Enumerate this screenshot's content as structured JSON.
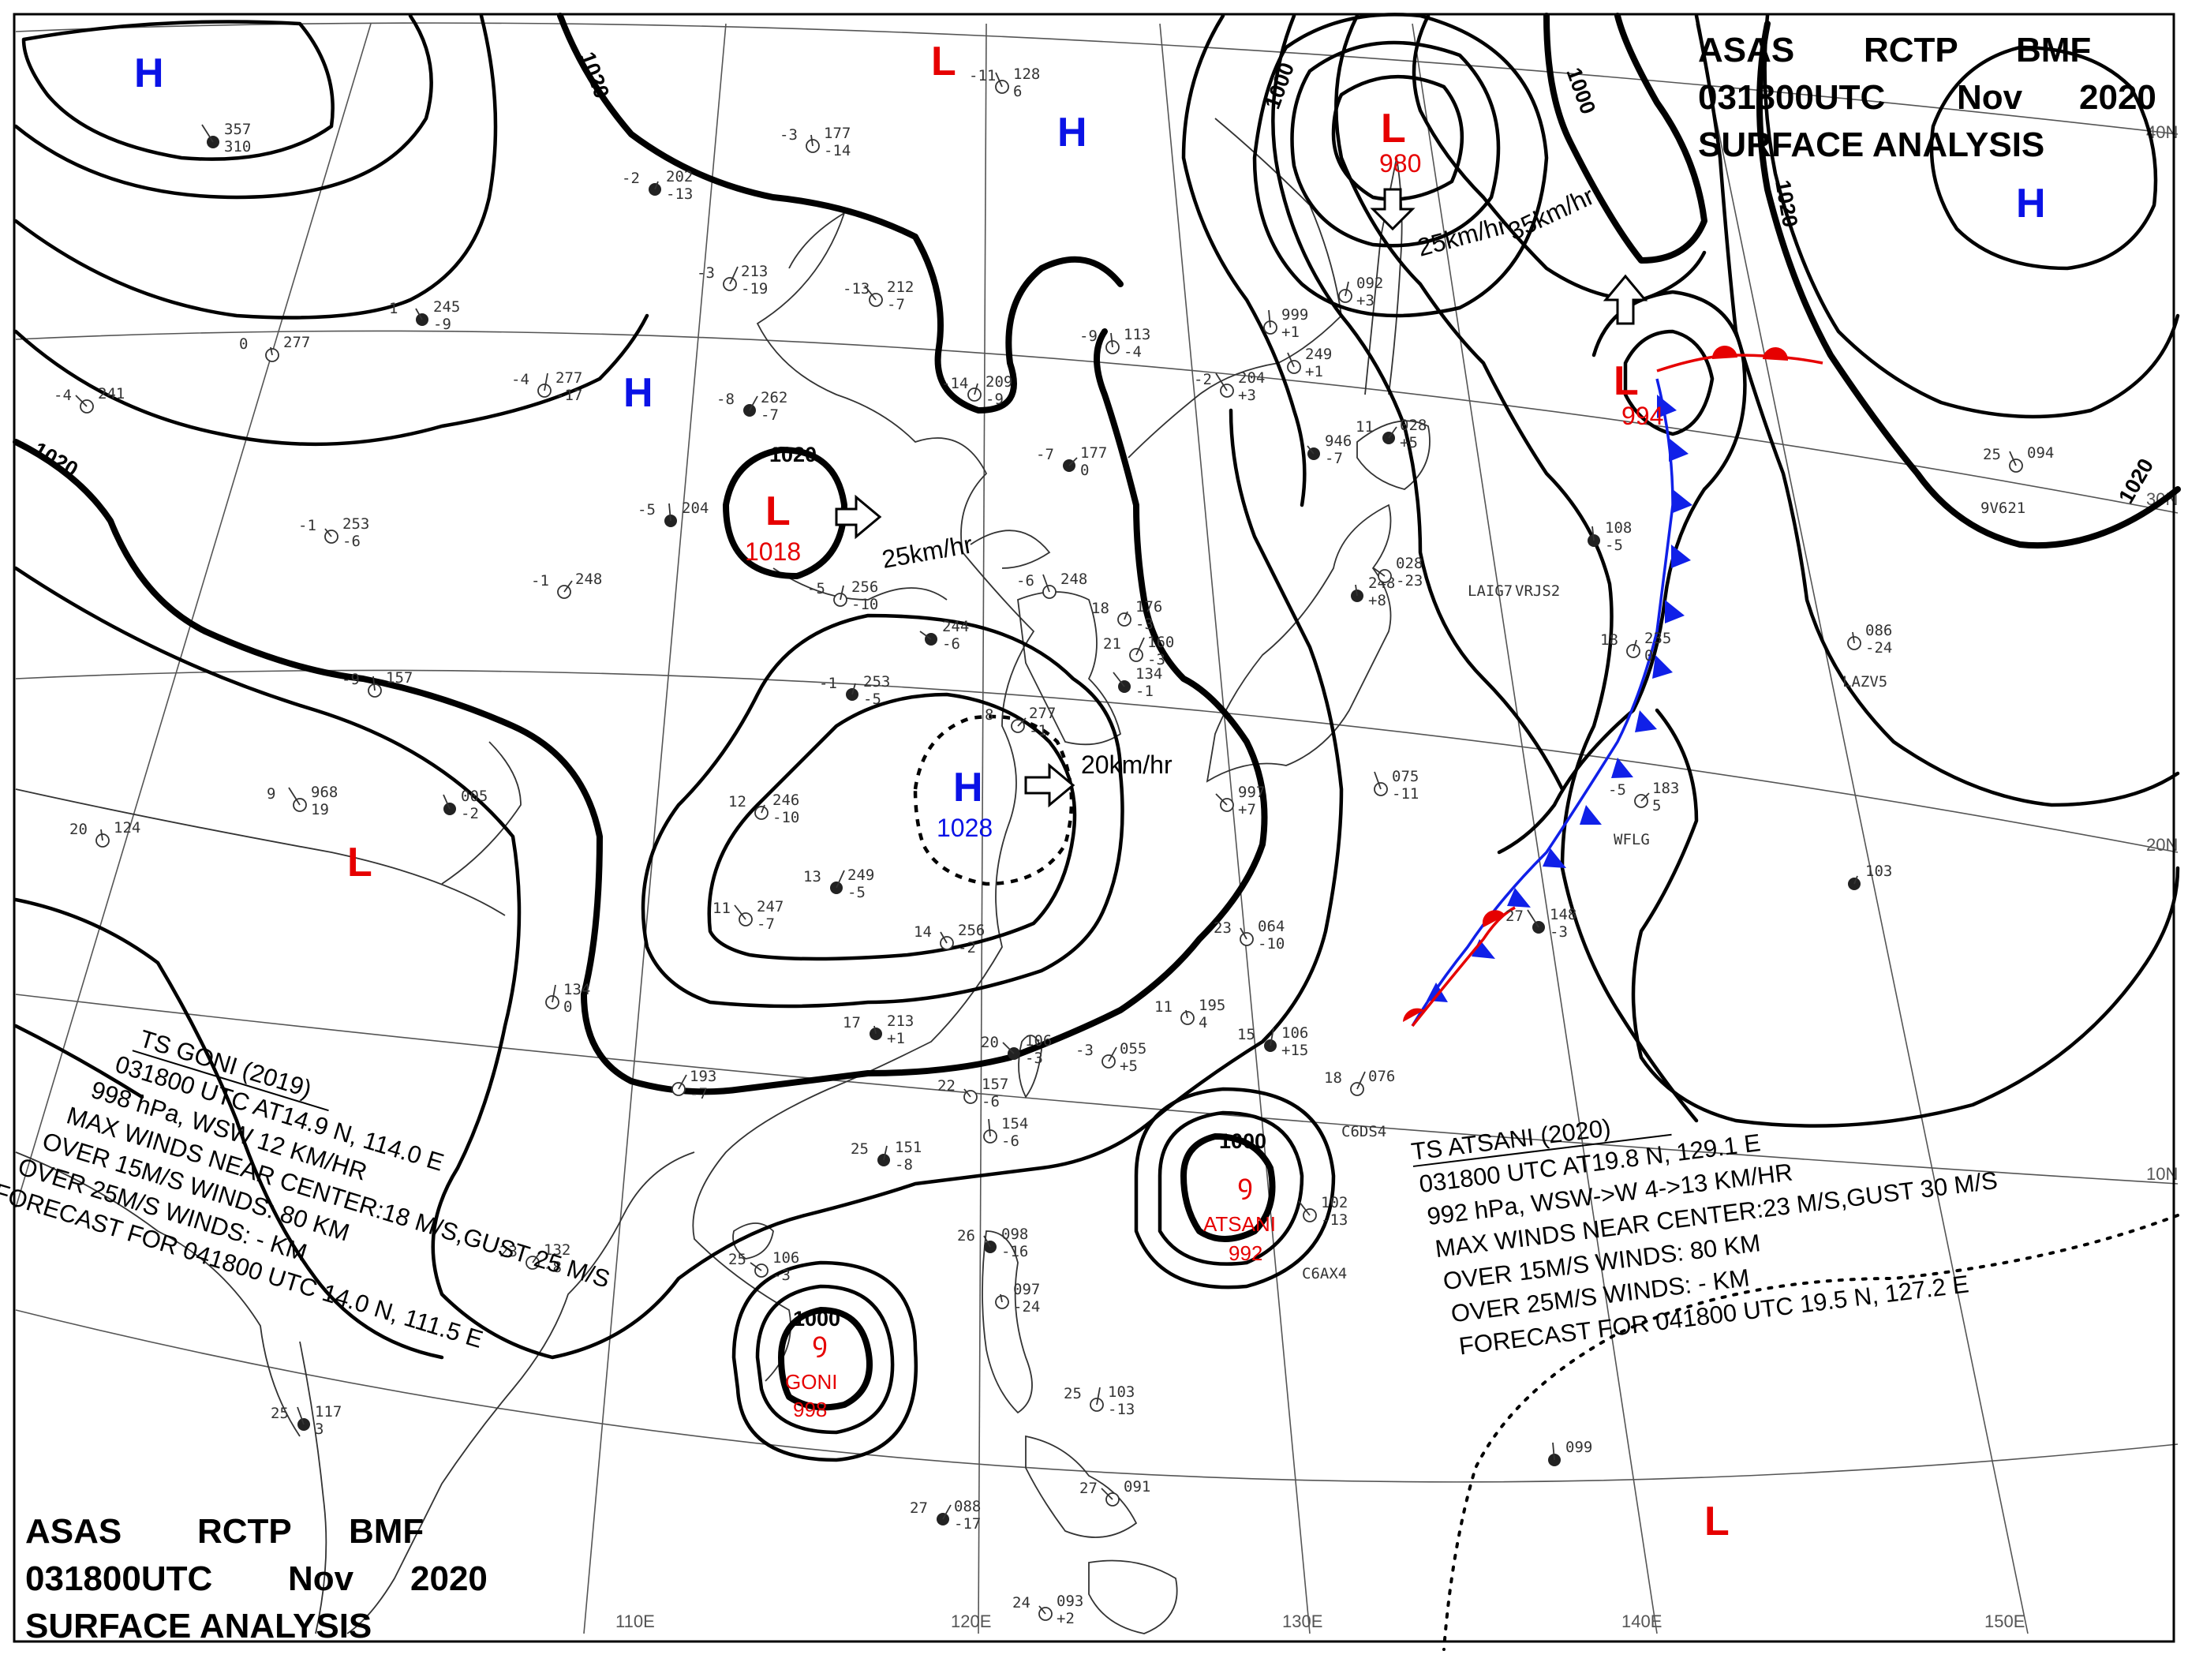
{
  "header_top": {
    "line1": [
      "ASAS",
      "RCTP",
      "BMF"
    ],
    "line2": [
      "031800UTC",
      "Nov",
      "2020"
    ],
    "line3": "SURFACE  ANALYSIS"
  },
  "header_bottom": {
    "line1": [
      "ASAS",
      "RCTP",
      "BMF"
    ],
    "line2": [
      "031800UTC",
      "Nov",
      "2020"
    ],
    "line3": "SURFACE  ANALYSIS"
  },
  "colors": {
    "high": "#0a12e6",
    "low": "#e60000",
    "storm": "#e60000",
    "cold_front": "#1020e8",
    "warm_front": "#e60000",
    "isobar": "#000000"
  },
  "grid_labels": {
    "lon": [
      "110E",
      "120E",
      "130E",
      "140E",
      "150E"
    ],
    "lat": [
      "40N",
      "30N",
      "20N",
      "10N"
    ]
  },
  "isobar_labels": [
    "1020",
    "1020",
    "1000",
    "1020",
    "1000",
    "1000",
    "1020",
    "1020",
    "1000",
    "1000"
  ],
  "pressure_systems": [
    {
      "type": "H",
      "name": "high-nw"
    },
    {
      "type": "H",
      "name": "high-north"
    },
    {
      "type": "H",
      "name": "high-mongolia"
    },
    {
      "type": "H",
      "name": "high-east",
      "icon": "high"
    },
    {
      "type": "H",
      "name": "high-china",
      "value": "1028"
    },
    {
      "type": "L",
      "name": "low-north"
    },
    {
      "type": "L",
      "name": "low-sakhalin",
      "value": "980"
    },
    {
      "type": "L",
      "name": "low-china",
      "value": "1018"
    },
    {
      "type": "L",
      "name": "low-japan-sea",
      "value": "994"
    },
    {
      "type": "L",
      "name": "low-india"
    },
    {
      "type": "L",
      "name": "low-pacific"
    }
  ],
  "motions": [
    "25km/hr",
    "35km/hr",
    "25km/hr",
    "20km/hr"
  ],
  "storms": [
    {
      "name": "GONI",
      "pressure": "998",
      "isobar": "1000"
    },
    {
      "name": "ATSANI",
      "pressure": "992",
      "isobar": "1000"
    }
  ],
  "ts_goni": {
    "lines": [
      "TS  GONI  (2019)",
      "031800 UTC  AT14.9 N, 114.0 E",
      "998 hPa, WSW  12 KM/HR",
      "MAX WINDS NEAR CENTER:18 M/S,GUST 25 M/S",
      "OVER 15M/S WINDS: 80 KM",
      "OVER 25M/S WINDS: - KM",
      "FORECAST FOR 041800 UTC 14.0 N, 111.5 E"
    ]
  },
  "ts_atsani": {
    "lines": [
      "TS  ATSANI  (2020)",
      "031800 UTC  AT19.8 N, 129.1 E",
      "992 hPa, WSW->W  4->13 KM/HR",
      "MAX WINDS NEAR CENTER:23 M/S,GUST 30 M/S",
      "OVER 15M/S WINDS: 80 KM",
      "OVER 25M/S WINDS: - KM",
      "FORECAST FOR 041800 UTC 19.5 N, 127.2 E"
    ]
  },
  "stations": [
    {
      "name": "stn-01",
      "p": "357",
      "t": "",
      "d": "310"
    },
    {
      "name": "stn-02",
      "p": "128",
      "t": "-11",
      "d": "6"
    },
    {
      "name": "stn-03",
      "p": "177",
      "t": "-3",
      "d": "-14"
    },
    {
      "name": "stn-04",
      "p": "202",
      "t": "-2",
      "d": "-13"
    },
    {
      "name": "stn-05",
      "p": "213",
      "t": "-3",
      "d": "-19"
    },
    {
      "name": "stn-06",
      "p": "212",
      "t": "-13",
      "d": "-7"
    },
    {
      "name": "stn-07",
      "p": "245",
      "t": "1",
      "d": "-9"
    },
    {
      "name": "stn-08",
      "p": "277",
      "t": "0",
      "d": ""
    },
    {
      "name": "stn-09",
      "p": "277",
      "t": "-4",
      "d": "-17"
    },
    {
      "name": "stn-10",
      "p": "262",
      "t": "-8",
      "d": "-7"
    },
    {
      "name": "stn-11",
      "p": "241",
      "t": "-4",
      "d": ""
    },
    {
      "name": "stn-12",
      "p": "253",
      "t": "-1",
      "d": "-6"
    },
    {
      "name": "stn-13",
      "p": "204",
      "t": "-5",
      "d": ""
    },
    {
      "name": "stn-14",
      "p": "256",
      "t": "-5",
      "d": "-10"
    },
    {
      "name": "stn-15",
      "p": "248",
      "t": "-1",
      "d": ""
    },
    {
      "name": "stn-16",
      "p": "244",
      "t": "",
      "d": "-6"
    },
    {
      "name": "stn-17",
      "p": "248",
      "t": "-6",
      "d": ""
    },
    {
      "name": "stn-18",
      "p": "157",
      "t": "-9",
      "d": ""
    },
    {
      "name": "stn-19",
      "p": "253",
      "t": "-1",
      "d": "-5"
    },
    {
      "name": "stn-20",
      "p": "277",
      "t": "8",
      "d": "-1"
    },
    {
      "name": "stn-21",
      "p": "968",
      "t": "9",
      "d": "19"
    },
    {
      "name": "stn-22",
      "p": "005",
      "t": "",
      "d": "-2"
    },
    {
      "name": "stn-23",
      "p": "124",
      "t": "20",
      "d": ""
    },
    {
      "name": "stn-24",
      "p": "246",
      "t": "12",
      "d": "-10"
    },
    {
      "name": "stn-25",
      "p": "249",
      "t": "13",
      "d": "-5"
    },
    {
      "name": "stn-26",
      "p": "247",
      "t": "11",
      "d": "-7"
    },
    {
      "name": "stn-27",
      "p": "256",
      "t": "14",
      "d": "-2"
    },
    {
      "name": "stn-28",
      "p": "213",
      "t": "17",
      "d": "+1"
    },
    {
      "name": "stn-29",
      "p": "134",
      "t": "",
      "d": "0"
    },
    {
      "name": "stn-30",
      "p": "193",
      "t": "",
      "d": "-7"
    },
    {
      "name": "stn-31",
      "p": "106",
      "t": "20",
      "d": "-3"
    },
    {
      "name": "stn-32",
      "p": "157",
      "t": "22",
      "d": "-6"
    },
    {
      "name": "stn-33",
      "p": "154",
      "t": "",
      "d": "-6"
    },
    {
      "name": "stn-34",
      "p": "151",
      "t": "25",
      "d": "-8"
    },
    {
      "name": "stn-35",
      "p": "132",
      "t": "23",
      "d": "-8"
    },
    {
      "name": "stn-36",
      "p": "106",
      "t": "25",
      "d": "-3"
    },
    {
      "name": "stn-37",
      "p": "117",
      "t": "25",
      "d": "3"
    },
    {
      "name": "stn-38",
      "p": "113",
      "t": "-9",
      "d": "-4"
    },
    {
      "name": "stn-39",
      "p": "209",
      "t": "-14",
      "d": "-9"
    },
    {
      "name": "stn-40",
      "p": "177",
      "t": "-7",
      "d": "0"
    },
    {
      "name": "stn-41",
      "p": "204",
      "t": "-2",
      "d": "+3"
    },
    {
      "name": "stn-42",
      "p": "249",
      "t": "",
      "d": "+1"
    },
    {
      "name": "stn-43",
      "p": "248",
      "t": "",
      "d": "+8"
    },
    {
      "name": "stn-44",
      "p": "176",
      "t": "18",
      "d": "-3"
    },
    {
      "name": "stn-45",
      "p": "160",
      "t": "21",
      "d": "-3"
    },
    {
      "name": "stn-46",
      "p": "134",
      "t": "",
      "d": "-1"
    },
    {
      "name": "stn-47",
      "p": "064",
      "t": "23",
      "d": "-10"
    },
    {
      "name": "stn-48",
      "p": "195",
      "t": "11",
      "d": "4"
    },
    {
      "name": "stn-49",
      "p": "106",
      "t": "15",
      "d": "+15"
    },
    {
      "name": "stn-50",
      "p": "055",
      "t": "-3",
      "d": "+5"
    },
    {
      "name": "stn-51",
      "p": "997",
      "t": "",
      "d": "+7"
    },
    {
      "name": "stn-52",
      "p": "946",
      "t": "",
      "d": "-7"
    },
    {
      "name": "stn-53",
      "p": "999",
      "t": "",
      "d": "+1"
    },
    {
      "name": "stn-54",
      "p": "092",
      "t": "",
      "d": "+3"
    },
    {
      "name": "stn-55",
      "p": "028",
      "t": "11",
      "d": "+5"
    },
    {
      "name": "stn-56",
      "p": "028",
      "t": "",
      "d": "-23"
    },
    {
      "name": "stn-57",
      "p": "075",
      "t": "",
      "d": "-11"
    },
    {
      "name": "stn-58",
      "p": "108",
      "t": "",
      "d": "-5"
    },
    {
      "name": "stn-59",
      "p": "235",
      "t": "18",
      "d": "0"
    },
    {
      "name": "stn-60",
      "p": "183",
      "t": "-5",
      "d": "5"
    },
    {
      "name": "stn-61",
      "p": "148",
      "t": "27",
      "d": "-3"
    },
    {
      "name": "stn-62",
      "p": "094",
      "t": "25",
      "d": ""
    },
    {
      "name": "stn-63",
      "p": "086",
      "t": "",
      "d": "-24"
    },
    {
      "name": "stn-64",
      "p": "103",
      "t": "",
      "d": ""
    },
    {
      "name": "stn-65",
      "p": "076",
      "t": "18",
      "d": ""
    },
    {
      "name": "stn-66",
      "p": "102",
      "t": "",
      "d": "-13"
    },
    {
      "name": "stn-67",
      "p": "098",
      "t": "26",
      "d": "-16"
    },
    {
      "name": "stn-68",
      "p": "097",
      "t": "",
      "d": "-24"
    },
    {
      "name": "stn-69",
      "p": "103",
      "t": "25",
      "d": "-13"
    },
    {
      "name": "stn-70",
      "p": "088",
      "t": "27",
      "d": "-17"
    },
    {
      "name": "stn-71",
      "p": "091",
      "t": "27",
      "d": ""
    },
    {
      "name": "stn-72",
      "p": "093",
      "t": "24",
      "d": "+2"
    },
    {
      "name": "stn-73",
      "p": "099",
      "t": "",
      "d": ""
    }
  ],
  "ship_ids": [
    "LAIG7",
    "VRJS2",
    "WFLG",
    "C6DS4",
    "C6AX4",
    "9V621",
    "LAZV5"
  ]
}
